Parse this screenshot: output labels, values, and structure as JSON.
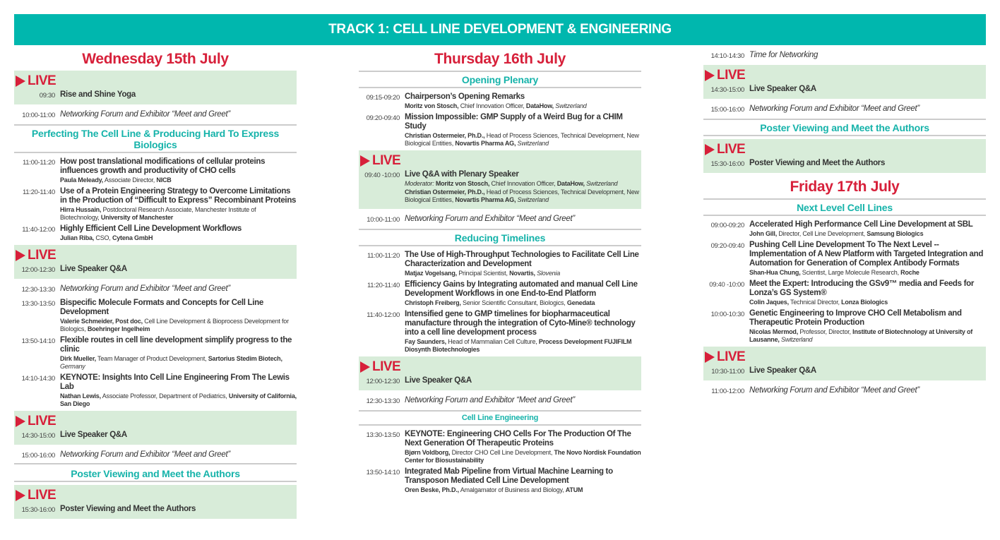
{
  "banner": "TRACK 1: CELL LINE DEVELOPMENT & ENGINEERING",
  "colors": {
    "teal": "#00b7ae",
    "red": "#d7203a",
    "live_bg": "#d8ecd9"
  },
  "live_label": "LIVE",
  "columns": [
    [
      {
        "type": "day",
        "text": "Wednesday 15th July"
      },
      {
        "type": "live",
        "time": "09:30",
        "title": "Rise and Shine Yoga"
      },
      {
        "type": "net",
        "time": "10:00-11:00",
        "title": "Networking Forum and Exhibitor “Meet and Greet”"
      },
      {
        "type": "section",
        "text": "Perfecting The Cell Line & Producing Hard To Express Biologics"
      },
      {
        "type": "session",
        "time": "11:00-11:20",
        "title": "How post translational modifications of cellular proteins influences growth and productivity of CHO cells",
        "speakers": [
          [
            [
              "Paula Meleady,",
              "b"
            ],
            [
              " Associate Director, ",
              ""
            ],
            [
              "NICB",
              "b"
            ]
          ]
        ]
      },
      {
        "type": "session",
        "time": "11:20-11:40",
        "title": "Use of a Protein Engineering Strategy to Overcome Limitations in the Production of “Difficult to Express” Recombinant Proteins",
        "speakers": [
          [
            [
              "Hirra Hussain,",
              "b"
            ],
            [
              " Postdoctoral Research Associate, Manchester Institute of Biotechnology, ",
              ""
            ],
            [
              "University of Manchester",
              "b"
            ]
          ]
        ]
      },
      {
        "type": "session",
        "time": "11:40-12:00",
        "title": "Highly Efficient Cell Line Development Workflows",
        "speakers": [
          [
            [
              "Julian Riba,",
              "b"
            ],
            [
              " CSO, ",
              ""
            ],
            [
              "Cytena GmbH",
              "b"
            ]
          ]
        ]
      },
      {
        "type": "live",
        "time": "12:00-12:30",
        "title": "Live Speaker Q&A"
      },
      {
        "type": "net",
        "time": "12:30-13:30",
        "title": "Networking Forum and Exhibitor “Meet and Greet”"
      },
      {
        "type": "session",
        "time": "13:30-13:50",
        "title": "Bispecific Molecule Formats and Concepts for Cell Line Development",
        "speakers": [
          [
            [
              "Valerie Schmeider, Post doc,",
              "b"
            ],
            [
              " Cell Line Development & Bioprocess Development for Biologics, ",
              ""
            ],
            [
              "Boehringer Ingelheim",
              "b"
            ]
          ]
        ]
      },
      {
        "type": "session",
        "time": "13:50-14:10",
        "title": "Flexible routes in cell line development simplify progress to the clinic",
        "speakers": [
          [
            [
              "Dirk Mueller,",
              "b"
            ],
            [
              " Team Manager of Product Development, ",
              ""
            ],
            [
              "Sartorius Stedim Biotech,",
              "b"
            ],
            [
              " Germany",
              "i"
            ]
          ]
        ]
      },
      {
        "type": "session",
        "time": "14:10-14:30",
        "title": "KEYNOTE: Insights Into Cell Line Engineering From The Lewis Lab",
        "speakers": [
          [
            [
              "Nathan Lewis,",
              "b"
            ],
            [
              " Associate Professor, Department of Pediatrics, ",
              ""
            ],
            [
              "University of California, San Diego",
              "b"
            ]
          ]
        ]
      },
      {
        "type": "live",
        "time": "14:30-15:00",
        "title": "Live Speaker Q&A"
      },
      {
        "type": "net",
        "time": "15:00-16:00",
        "title": "Networking Forum and Exhibitor “Meet and Greet”",
        "sep": true
      },
      {
        "type": "section",
        "text": "Poster Viewing and Meet the Authors",
        "notop": true
      },
      {
        "type": "live",
        "time": "15:30-16:00",
        "title": "Poster Viewing and Meet the Authors"
      }
    ],
    [
      {
        "type": "day",
        "text": "Thursday 16th July"
      },
      {
        "type": "section",
        "text": "Opening Plenary"
      },
      {
        "type": "session",
        "time": "09:15-09:20",
        "title": "Chairperson’s Opening Remarks",
        "speakers": [
          [
            [
              "Moritz von Stosch,",
              "b"
            ],
            [
              " Chief Innovation Officer, ",
              ""
            ],
            [
              "DataHow,",
              "b"
            ],
            [
              " Switzerland",
              "i"
            ]
          ]
        ]
      },
      {
        "type": "session",
        "time": "09:20-09:40",
        "title": "Mission Impossible: GMP Supply of a Weird Bug for a CHIM Study",
        "speakers": [
          [
            [
              "Christian Ostermeier, Ph.D.,",
              "b"
            ],
            [
              " Head of Process Sciences, Technical Development, New Biological Entities, ",
              ""
            ],
            [
              "Novartis Pharma AG,",
              "b"
            ],
            [
              " Switzerland",
              "i"
            ]
          ]
        ]
      },
      {
        "type": "live",
        "time": "09:40 -10:00",
        "title": "Live Q&A with Plenary Speaker",
        "speakers": [
          [
            [
              "Moderator:",
              "i"
            ],
            [
              " Moritz von Stosch,",
              "b"
            ],
            [
              " Chief Innovation Officer, ",
              ""
            ],
            [
              "DataHow,",
              "b"
            ],
            [
              " Switzerland",
              "i"
            ]
          ],
          [
            [
              "Christian Ostermeier, Ph.D.,",
              "b"
            ],
            [
              " Head of Process Sciences, Technical Development, New Biological Entities, ",
              ""
            ],
            [
              "Novartis Pharma AG,",
              "b"
            ],
            [
              " Switzerland",
              "i"
            ]
          ]
        ]
      },
      {
        "type": "net",
        "time": "10:00-11:00",
        "title": "Networking Forum and Exhibitor “Meet and Greet”"
      },
      {
        "type": "section",
        "text": "Reducing Timelines"
      },
      {
        "type": "session",
        "time": "11:00-11:20",
        "title": "The Use of High-Throughput Technologies to Facilitate Cell Line Characterization and Development",
        "speakers": [
          [
            [
              "Matjaz Vogelsang,",
              "b"
            ],
            [
              " Principal Scientist, ",
              ""
            ],
            [
              "Novartis,",
              "b"
            ],
            [
              " Slovenia",
              "i"
            ]
          ]
        ]
      },
      {
        "type": "session",
        "time": "11:20-11:40",
        "title": "Efficiency Gains by Integrating automated and manual Cell Line Development Workflows in one End-to-End Platform",
        "speakers": [
          [
            [
              "Christoph Freiberg,",
              "b"
            ],
            [
              " Senior Scientific Consultant, Biologics, ",
              ""
            ],
            [
              "Genedata",
              "b"
            ]
          ]
        ]
      },
      {
        "type": "session",
        "time": "11:40-12:00",
        "title": "Intensified gene to GMP timelines for biopharmaceutical manufacture through the integration of Cyto-Mine® technology into a cell line development process",
        "speakers": [
          [
            [
              "Fay Saunders,",
              "b"
            ],
            [
              " Head of Mammalian Cell Culture, ",
              ""
            ],
            [
              "Process Development FUJIFILM Diosynth Biotechnologies",
              "b"
            ]
          ]
        ]
      },
      {
        "type": "live",
        "time": "12:00-12:30",
        "title": "Live Speaker Q&A"
      },
      {
        "type": "net",
        "time": "12:30-13:30",
        "title": "Networking Forum and Exhibitor “Meet and Greet”"
      },
      {
        "type": "section",
        "text": "Cell Line Engineering",
        "small": true
      },
      {
        "type": "session",
        "time": "13:30-13:50",
        "title": "KEYNOTE: Engineering CHO Cells For The Production Of The Next Generation Of Therapeutic Proteins",
        "speakers": [
          [
            [
              "Bjørn Voldborg,",
              "b"
            ],
            [
              " Director CHO Cell Line Development, ",
              ""
            ],
            [
              "The Novo Nordisk Foundation Center for Biosustainability",
              "b"
            ]
          ]
        ]
      },
      {
        "type": "session",
        "time": "13:50-14:10",
        "title": "Integrated Mab Pipeline from Virtual Machine Learning to Transposon Mediated Cell Line Development",
        "speakers": [
          [
            [
              "Oren Beske, Ph.D.,",
              "b"
            ],
            [
              " Amalgamator of Business and Biology, ",
              ""
            ],
            [
              "ATUM",
              "b"
            ]
          ]
        ]
      }
    ],
    [
      {
        "type": "net",
        "time": "14:10-14:30",
        "title": "Time for Networking"
      },
      {
        "type": "live",
        "time": "14:30-15:00",
        "title": "Live Speaker Q&A"
      },
      {
        "type": "net",
        "time": "15:00-16:00",
        "title": "Networking Forum and Exhibitor “Meet and Greet”"
      },
      {
        "type": "section",
        "text": "Poster Viewing and Meet the Authors"
      },
      {
        "type": "live",
        "time": "15:30-16:00",
        "title": "Poster Viewing and Meet the Authors"
      },
      {
        "type": "day",
        "text": "Friday 17th July"
      },
      {
        "type": "section",
        "text": "Next Level Cell Lines"
      },
      {
        "type": "session",
        "time": "09:00-09:20",
        "title": "Accelerated High Performance Cell Line Development at SBL",
        "speakers": [
          [
            [
              "John Gill,",
              "b"
            ],
            [
              " Director, Cell Line Development, ",
              ""
            ],
            [
              "Samsung Biologics",
              "b"
            ]
          ]
        ]
      },
      {
        "type": "session",
        "time": "09:20-09:40",
        "title": "Pushing Cell Line Development To The Next Level -- Implementation of A New Platform with Targeted Integration and Automation for Generation of Complex Antibody Formats",
        "speakers": [
          [
            [
              "Shan-Hua Chung,",
              "b"
            ],
            [
              " Scientist, Large Molecule Research, ",
              ""
            ],
            [
              "Roche",
              "b"
            ]
          ]
        ]
      },
      {
        "type": "session",
        "time": "09:40 -10:00",
        "title": "Meet the Expert: Introducing the GSv9™ media and Feeds for Lonza’s GS System®",
        "speakers": [
          [
            [
              "Colin Jaques,",
              "b"
            ],
            [
              " Technical Director, ",
              ""
            ],
            [
              "Lonza Biologics",
              "b"
            ]
          ]
        ]
      },
      {
        "type": "session",
        "time": "10:00-10:30",
        "title": "Genetic Engineering to Improve CHO Cell Metabolism and Therapeutic Protein Production",
        "speakers": [
          [
            [
              "Nicolas Mermod,",
              "b"
            ],
            [
              " Professor, Director, ",
              ""
            ],
            [
              "Institute of Biotechnology at University of Lausanne,",
              "b"
            ],
            [
              " Switzerland",
              "i"
            ]
          ]
        ]
      },
      {
        "type": "live",
        "time": "10:30-11:00",
        "title": "Live Speaker Q&A"
      },
      {
        "type": "net",
        "time": "11:00-12:00",
        "title": "Networking Forum and Exhibitor “Meet and Greet”"
      }
    ]
  ]
}
